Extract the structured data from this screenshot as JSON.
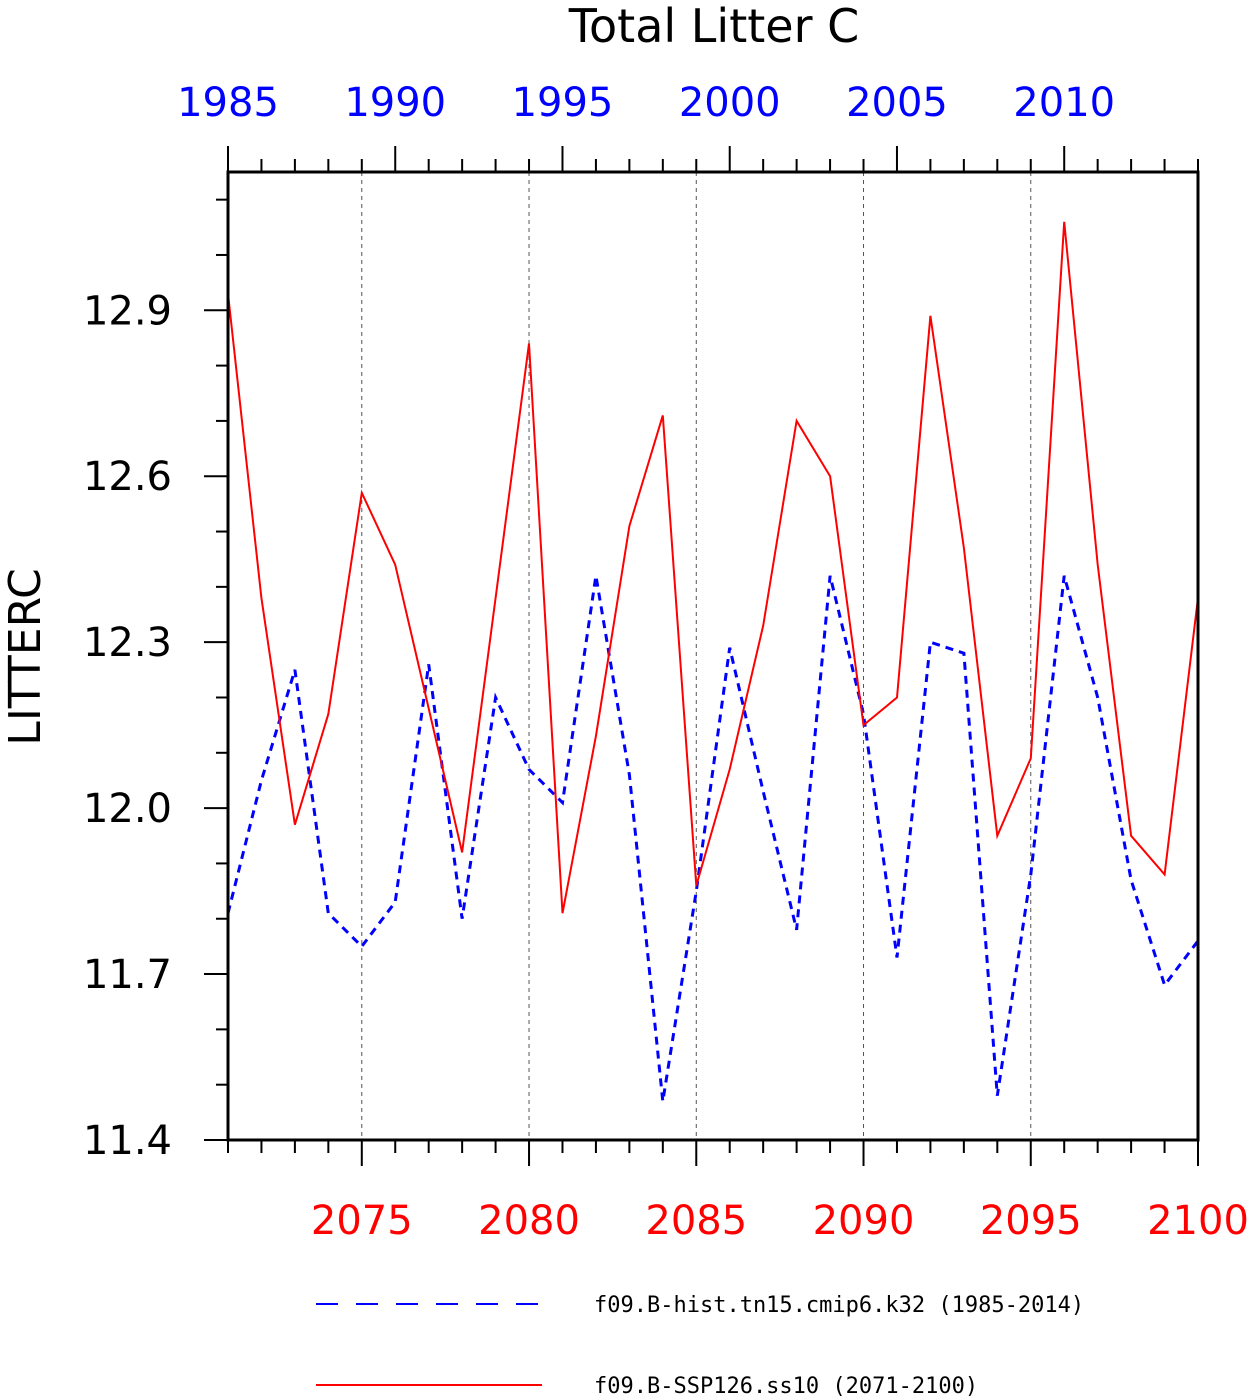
{
  "chart_data": {
    "type": "line",
    "title": "Total Litter C",
    "ylabel": "LITTERC",
    "xlabel": "",
    "ylim": [
      11.4,
      13.15
    ],
    "yticks": [
      "11.4",
      "11.7",
      "12.0",
      "12.3",
      "12.6",
      "12.9"
    ],
    "grid": "vertical-dashed",
    "top_axis": {
      "color": "#0000ff",
      "range": [
        1985,
        2014
      ],
      "ticks": [
        "1985",
        "1990",
        "1995",
        "2000",
        "2005",
        "2010"
      ]
    },
    "bottom_axis": {
      "color": "#ff0000",
      "range": [
        2071,
        2100
      ],
      "ticks": [
        "2075",
        "2080",
        "2085",
        "2090",
        "2095",
        "2100"
      ]
    },
    "series": [
      {
        "name": "f09.B-hist.tn15.cmip6.k32 (1985-2014)",
        "color": "#0000ff",
        "style": "dashed",
        "axis": "top",
        "x": [
          1985,
          1986,
          1987,
          1988,
          1989,
          1990,
          1991,
          1992,
          1993,
          1994,
          1995,
          1996,
          1997,
          1998,
          1999,
          2000,
          2001,
          2002,
          2003,
          2004,
          2005,
          2006,
          2007,
          2008,
          2009,
          2010,
          2011,
          2012,
          2013,
          2014
        ],
        "values": [
          11.81,
          12.05,
          12.25,
          11.81,
          11.75,
          11.83,
          12.26,
          11.8,
          12.2,
          12.07,
          12.01,
          12.42,
          12.06,
          11.47,
          11.85,
          12.29,
          12.03,
          11.78,
          12.42,
          12.17,
          11.73,
          12.3,
          12.28,
          11.48,
          11.88,
          12.42,
          12.2,
          11.87,
          11.68,
          11.76
        ]
      },
      {
        "name": "f09.B-SSP126.ss10 (2071-2100)",
        "color": "#ff0000",
        "style": "solid",
        "axis": "bottom",
        "x": [
          2071,
          2072,
          2073,
          2074,
          2075,
          2076,
          2077,
          2078,
          2079,
          2080,
          2081,
          2082,
          2083,
          2084,
          2085,
          2086,
          2087,
          2088,
          2089,
          2090,
          2091,
          2092,
          2093,
          2094,
          2095,
          2096,
          2097,
          2098,
          2099,
          2100
        ],
        "values": [
          12.93,
          12.38,
          11.97,
          12.17,
          12.57,
          12.44,
          12.18,
          11.92,
          12.38,
          12.84,
          11.81,
          12.13,
          12.51,
          12.71,
          11.86,
          12.07,
          12.33,
          12.7,
          12.6,
          12.15,
          12.2,
          12.89,
          12.47,
          11.95,
          12.09,
          13.06,
          12.44,
          11.95,
          11.88,
          12.38
        ]
      }
    ]
  },
  "legend": {
    "items": [
      {
        "label": "f09.B-hist.tn15.cmip6.k32 (1985-2014)"
      },
      {
        "label": "f09.B-SSP126.ss10 (2071-2100)"
      }
    ]
  }
}
